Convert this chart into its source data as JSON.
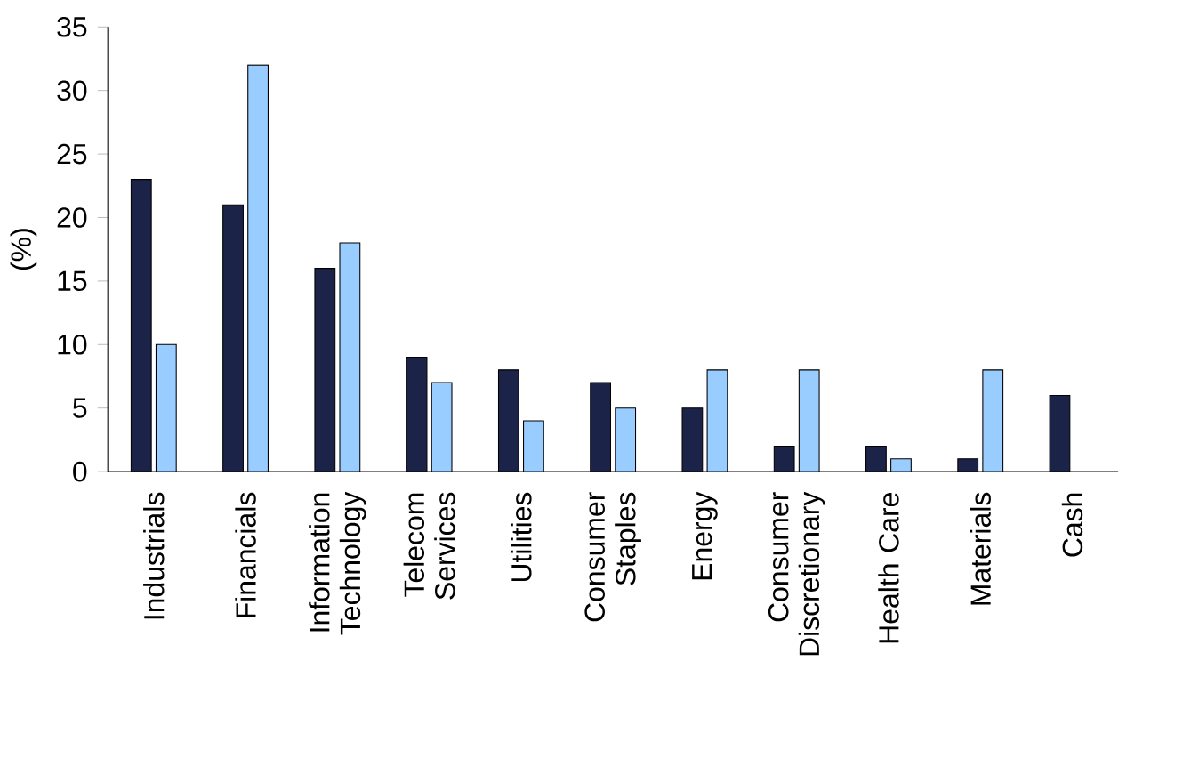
{
  "chart_data": {
    "type": "bar",
    "ylabel": "(%)",
    "categories": [
      "Industrials",
      "Financials",
      "Information Technology",
      "Telecom Services",
      "Utilities",
      "Consumer Staples",
      "Energy",
      "Consumer Discretionary",
      "Health Care",
      "Materials",
      "Cash"
    ],
    "series": [
      {
        "color": "#1b2448",
        "values": [
          23,
          21,
          16,
          9,
          8,
          7,
          5,
          2,
          2,
          1,
          6
        ]
      },
      {
        "color": "#99ccff",
        "values": [
          10,
          32,
          18,
          7,
          4,
          5,
          8,
          8,
          1,
          8,
          null
        ]
      }
    ],
    "ylim": [
      0,
      35
    ],
    "yticks": [
      0,
      5,
      10,
      15,
      20,
      25,
      30,
      35
    ],
    "grid": false
  }
}
